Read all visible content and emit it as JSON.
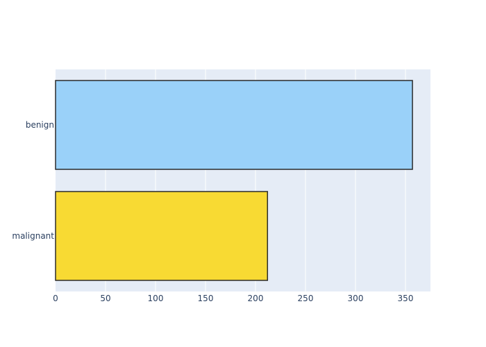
{
  "chart_data": {
    "type": "bar",
    "orientation": "horizontal",
    "categories": [
      "benign",
      "malignant"
    ],
    "values": [
      357,
      212
    ],
    "colors": [
      "#9AD1F9",
      "#F8DA33"
    ],
    "title": "",
    "xlabel": "",
    "ylabel": "",
    "xlim": [
      0,
      375
    ],
    "xticks": [
      0,
      50,
      100,
      150,
      200,
      250,
      300,
      350
    ],
    "grid": true,
    "legend": "none"
  },
  "style": {
    "plot_bg": "#E5ECF6",
    "grid_color": "#ffffff",
    "text_color": "#2a3f5f",
    "bar_outline": "#2b2b2b"
  }
}
